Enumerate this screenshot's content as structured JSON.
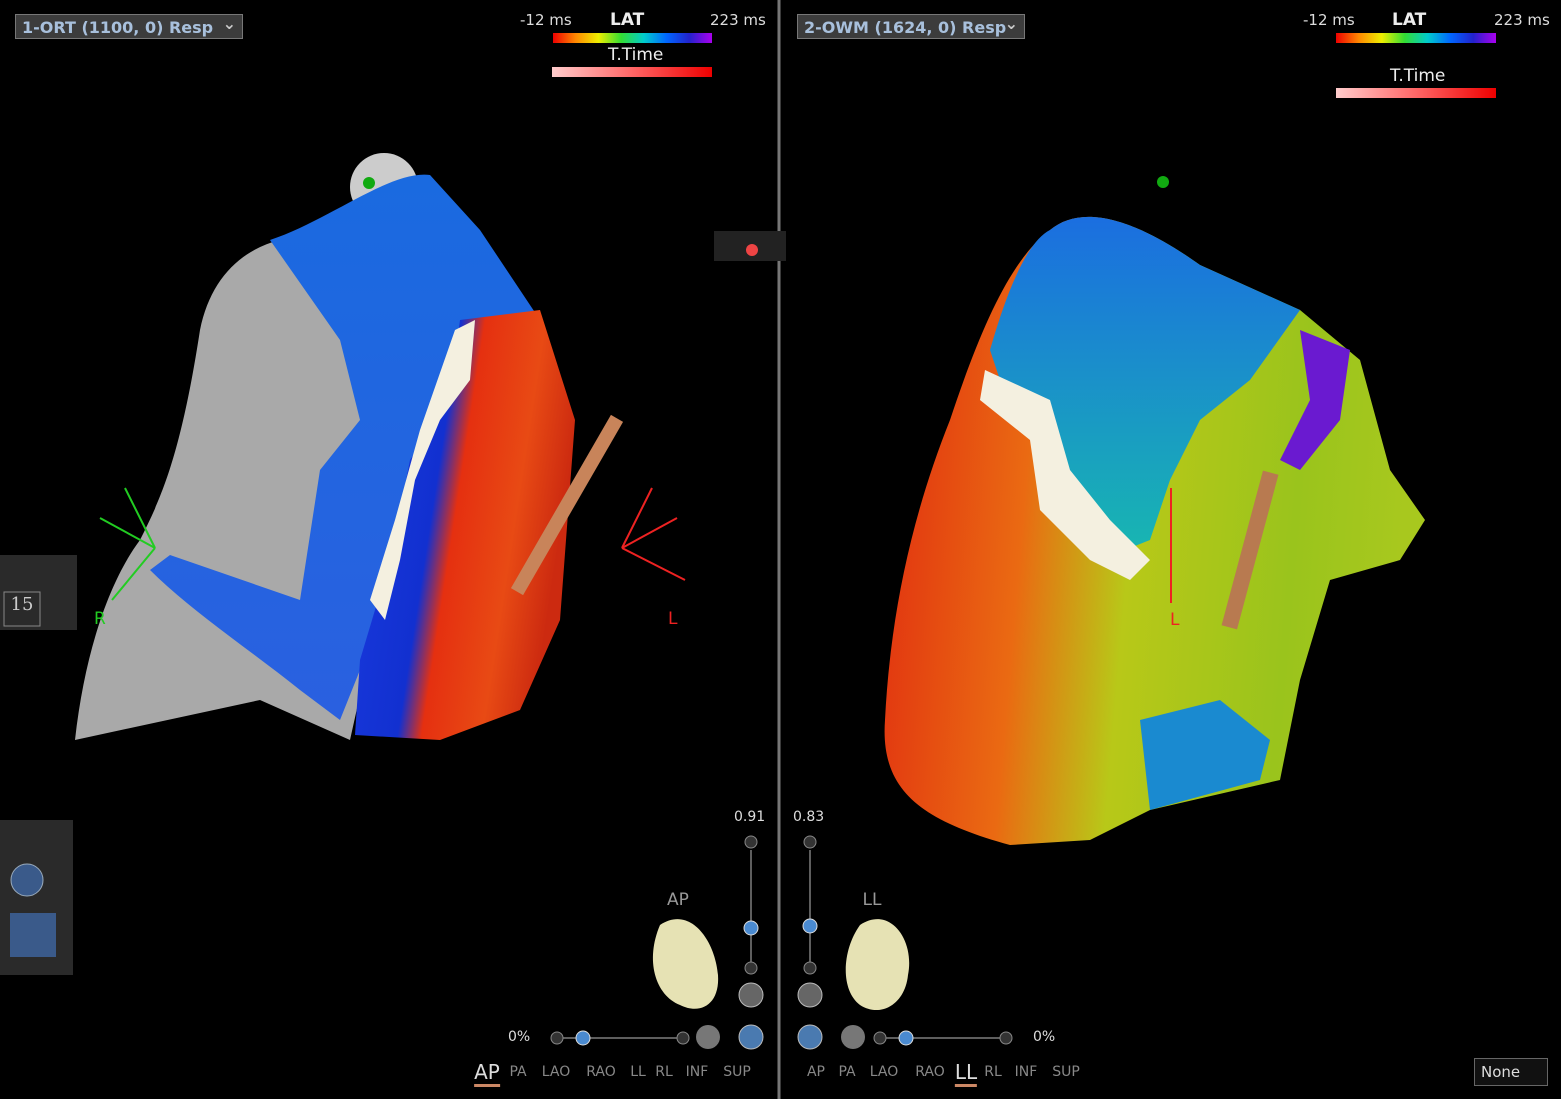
{
  "panels": [
    {
      "dropdown": "1-ORT (1100, 0) Resp",
      "lat_scale": {
        "min": "-12 ms",
        "title": "LAT",
        "max": "223 ms"
      },
      "ttime_label": "T.Time",
      "orientation_labels": [
        "R",
        "L"
      ],
      "zoom": "0.91",
      "view_label": "AP",
      "opacity": "0%",
      "views": [
        "AP",
        "PA",
        "LAO",
        "RAO",
        "LL",
        "RL",
        "INF",
        "SUP"
      ],
      "selected_view": 0
    },
    {
      "dropdown": "2-OWM (1624, 0) Resp",
      "lat_scale": {
        "min": "-12 ms",
        "title": "LAT",
        "max": "223 ms"
      },
      "ttime_label": "T.Time",
      "orientation_labels": [
        "L"
      ],
      "zoom": "0.83",
      "view_label": "LL",
      "opacity": "0%",
      "views": [
        "AP",
        "PA",
        "LAO",
        "RAO",
        "LL",
        "RL",
        "INF",
        "SUP"
      ],
      "selected_view": 4
    }
  ],
  "side_tool": {
    "counter": "15"
  },
  "bottom_select": "None"
}
